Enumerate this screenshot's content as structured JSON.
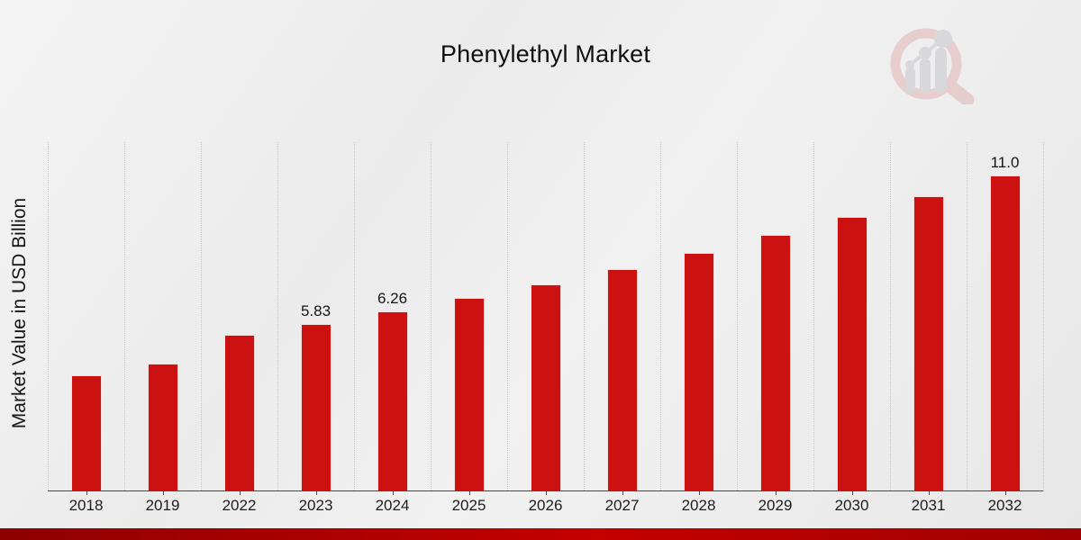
{
  "page": {
    "background": "#ededed",
    "accent_color": "#cc1111"
  },
  "chart_data": {
    "type": "bar",
    "title": "Phenylethyl Market",
    "xlabel": "",
    "ylabel": "Market Value in USD Billion",
    "categories": [
      "2018",
      "2019",
      "2022",
      "2023",
      "2024",
      "2025",
      "2026",
      "2027",
      "2028",
      "2029",
      "2030",
      "2031",
      "2032"
    ],
    "values": [
      4.04,
      4.42,
      5.43,
      5.83,
      6.26,
      6.72,
      7.21,
      7.74,
      8.31,
      8.92,
      9.57,
      10.27,
      11.0
    ],
    "data_labels": [
      "",
      "",
      "",
      "5.83",
      "6.26",
      "",
      "",
      "",
      "",
      "",
      "",
      "",
      "11.0"
    ],
    "ylim": [
      0,
      12.17
    ],
    "bar_color": "#cc1111",
    "grid": "vertical-dotted",
    "legend": "none",
    "y_tick_labels": "none"
  },
  "footer": {
    "band_gradient": [
      "#8f0000",
      "#c40000",
      "#a00000"
    ]
  },
  "logo": {
    "icon": "magnifier-growth-chart-logo",
    "ring_color": "#e2b3b3",
    "chart_color": "#c7c7cb"
  }
}
